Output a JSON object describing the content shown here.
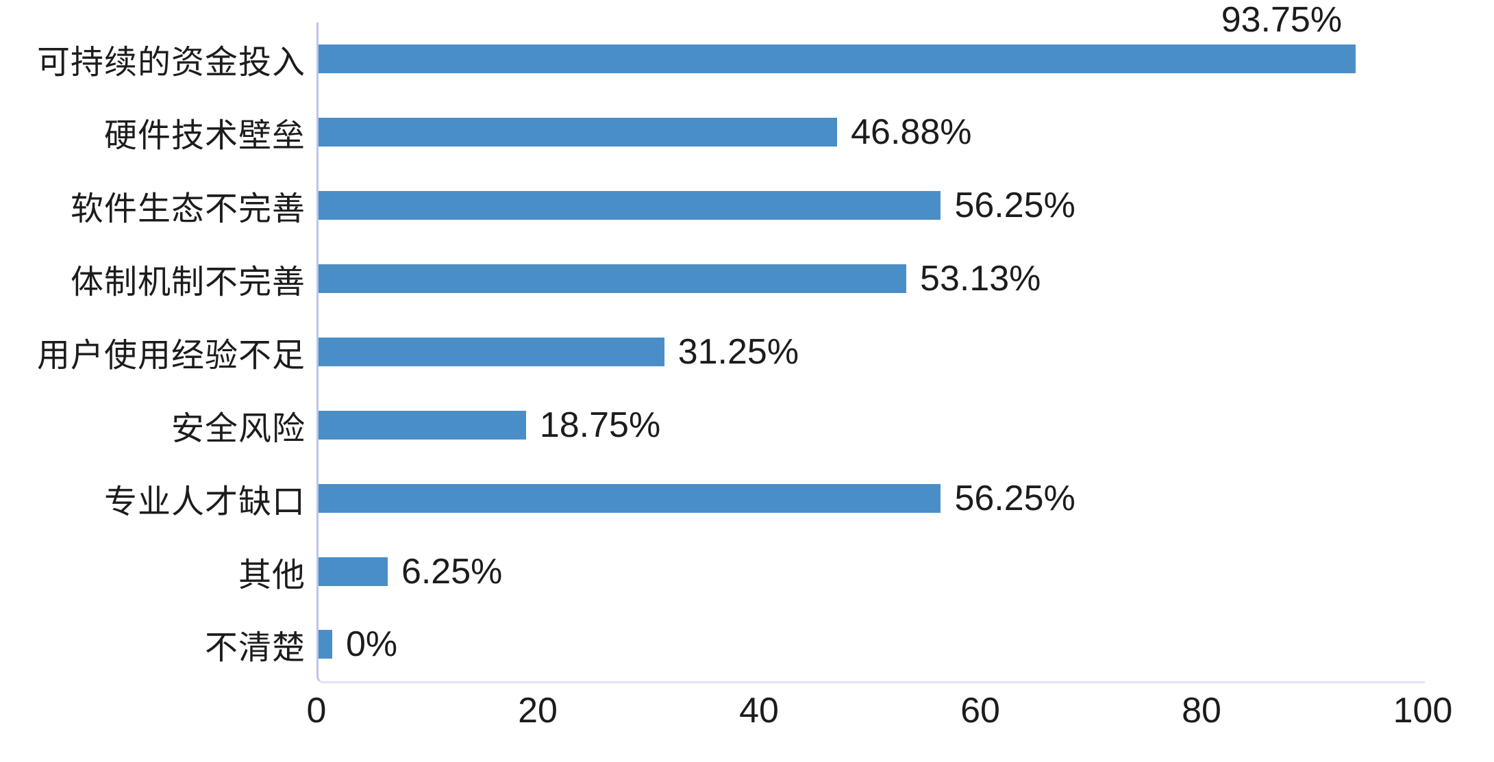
{
  "chart_data": {
    "type": "bar",
    "orientation": "horizontal",
    "title": "",
    "categories": [
      "可持续的资金投入",
      "硬件技术壁垒",
      "软件生态不完善",
      "体制机制不完善",
      "用户使用经验不足",
      "安全风险",
      "专业人才缺口",
      "其他",
      "不清楚"
    ],
    "values": [
      93.75,
      46.88,
      56.25,
      53.13,
      31.25,
      18.75,
      56.25,
      6.25,
      0
    ],
    "value_labels": [
      "93.75%",
      "46.88%",
      "56.25%",
      "53.13%",
      "31.25%",
      "18.75%",
      "56.25%",
      "6.25%",
      "0%"
    ],
    "x_ticks": [
      "0",
      "20",
      "40",
      "60",
      "80",
      "100"
    ],
    "xlabel": "",
    "ylabel": "",
    "xlim": [
      0,
      100
    ],
    "grid": false,
    "legend": "none",
    "bar_color": "#4a8ec7",
    "axis_line_color": "#b9c6e6",
    "plot_border_color": "#dfe5f3",
    "text_color": "#1c1c1c",
    "value_label_placement": "right of bar end; first bar label above bar end"
  }
}
